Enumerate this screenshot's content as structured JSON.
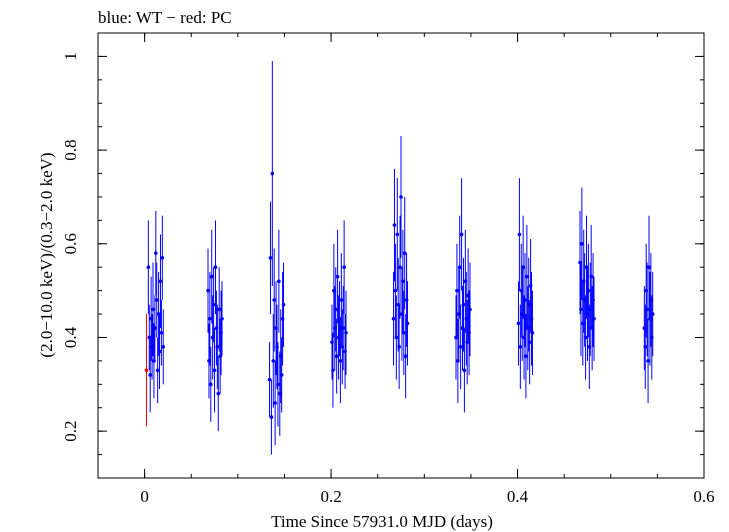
{
  "chart_data": {
    "type": "scatter",
    "title": "blue: WT − red: PC",
    "xlabel": "Time Since 57931.0 MJD (days)",
    "ylabel": "(2.0−10.0 keV)/(0.3−2.0 keV)",
    "xlim": [
      -0.05,
      0.6
    ],
    "ylim": [
      0.1,
      1.05
    ],
    "x_ticks": [
      0,
      0.2,
      0.4,
      0.6
    ],
    "x_tick_labels": [
      "0",
      "0.2",
      "0.4",
      "0.6"
    ],
    "y_ticks": [
      0.2,
      0.4,
      0.6,
      0.8,
      1
    ],
    "y_tick_labels": [
      "0.2",
      "0.4",
      "0.6",
      "0.8",
      "1"
    ],
    "grid": false,
    "series": [
      {
        "name": "WT",
        "color": "#0000ff",
        "x": [
          0.004,
          0.005,
          0.006,
          0.007,
          0.008,
          0.009,
          0.01,
          0.011,
          0.012,
          0.013,
          0.014,
          0.015,
          0.016,
          0.017,
          0.018,
          0.019,
          0.02,
          0.068,
          0.069,
          0.07,
          0.071,
          0.072,
          0.073,
          0.074,
          0.075,
          0.076,
          0.077,
          0.078,
          0.079,
          0.08,
          0.081,
          0.082,
          0.083,
          0.134,
          0.135,
          0.136,
          0.137,
          0.138,
          0.139,
          0.14,
          0.141,
          0.142,
          0.143,
          0.144,
          0.145,
          0.146,
          0.147,
          0.148,
          0.149,
          0.201,
          0.202,
          0.203,
          0.204,
          0.205,
          0.206,
          0.207,
          0.208,
          0.209,
          0.21,
          0.211,
          0.212,
          0.213,
          0.214,
          0.215,
          0.216,
          0.267,
          0.268,
          0.269,
          0.27,
          0.271,
          0.272,
          0.273,
          0.274,
          0.275,
          0.276,
          0.277,
          0.278,
          0.279,
          0.28,
          0.281,
          0.282,
          0.334,
          0.335,
          0.336,
          0.337,
          0.338,
          0.339,
          0.34,
          0.341,
          0.342,
          0.343,
          0.344,
          0.345,
          0.346,
          0.347,
          0.348,
          0.349,
          0.401,
          0.402,
          0.403,
          0.404,
          0.405,
          0.406,
          0.407,
          0.408,
          0.409,
          0.41,
          0.411,
          0.412,
          0.413,
          0.414,
          0.415,
          0.416,
          0.467,
          0.468,
          0.469,
          0.47,
          0.471,
          0.472,
          0.473,
          0.474,
          0.475,
          0.476,
          0.477,
          0.478,
          0.479,
          0.48,
          0.481,
          0.482,
          0.536,
          0.537,
          0.538,
          0.539,
          0.54,
          0.541,
          0.542,
          0.543,
          0.544,
          0.545
        ],
        "y": [
          0.55,
          0.4,
          0.32,
          0.44,
          0.38,
          0.46,
          0.35,
          0.42,
          0.58,
          0.48,
          0.33,
          0.45,
          0.37,
          0.52,
          0.41,
          0.57,
          0.38,
          0.5,
          0.35,
          0.44,
          0.3,
          0.53,
          0.4,
          0.47,
          0.33,
          0.55,
          0.42,
          0.38,
          0.28,
          0.46,
          0.36,
          0.41,
          0.44,
          0.31,
          0.57,
          0.23,
          0.75,
          0.35,
          0.48,
          0.26,
          0.42,
          0.38,
          0.3,
          0.52,
          0.28,
          0.36,
          0.32,
          0.44,
          0.47,
          0.39,
          0.33,
          0.5,
          0.42,
          0.46,
          0.36,
          0.53,
          0.4,
          0.44,
          0.35,
          0.48,
          0.38,
          0.42,
          0.55,
          0.37,
          0.41,
          0.44,
          0.64,
          0.5,
          0.4,
          0.62,
          0.47,
          0.38,
          0.55,
          0.7,
          0.45,
          0.52,
          0.41,
          0.58,
          0.36,
          0.48,
          0.43,
          0.4,
          0.5,
          0.35,
          0.45,
          0.55,
          0.38,
          0.62,
          0.42,
          0.47,
          0.33,
          0.52,
          0.44,
          0.39,
          0.49,
          0.41,
          0.46,
          0.43,
          0.62,
          0.38,
          0.5,
          0.45,
          0.55,
          0.4,
          0.48,
          0.36,
          0.53,
          0.42,
          0.47,
          0.39,
          0.51,
          0.44,
          0.41,
          0.56,
          0.46,
          0.6,
          0.43,
          0.52,
          0.48,
          0.4,
          0.55,
          0.45,
          0.5,
          0.38,
          0.46,
          0.53,
          0.42,
          0.48,
          0.44,
          0.42,
          0.38,
          0.5,
          0.46,
          0.35,
          0.55,
          0.44,
          0.48,
          0.4,
          0.45
        ],
        "err": [
          0.1,
          0.07,
          0.08,
          0.09,
          0.07,
          0.1,
          0.08,
          0.07,
          0.09,
          0.08,
          0.07,
          0.09,
          0.08,
          0.1,
          0.07,
          0.09,
          0.08,
          0.09,
          0.08,
          0.1,
          0.08,
          0.1,
          0.09,
          0.08,
          0.09,
          0.1,
          0.08,
          0.09,
          0.08,
          0.09,
          0.08,
          0.09,
          0.08,
          0.08,
          0.12,
          0.08,
          0.24,
          0.1,
          0.11,
          0.09,
          0.1,
          0.09,
          0.09,
          0.11,
          0.09,
          0.1,
          0.08,
          0.1,
          0.09,
          0.08,
          0.08,
          0.1,
          0.09,
          0.09,
          0.08,
          0.1,
          0.09,
          0.08,
          0.09,
          0.1,
          0.08,
          0.09,
          0.1,
          0.08,
          0.09,
          0.1,
          0.12,
          0.1,
          0.09,
          0.12,
          0.1,
          0.09,
          0.11,
          0.13,
          0.1,
          0.11,
          0.09,
          0.12,
          0.09,
          0.1,
          0.09,
          0.09,
          0.1,
          0.09,
          0.1,
          0.11,
          0.09,
          0.12,
          0.09,
          0.1,
          0.09,
          0.11,
          0.1,
          0.09,
          0.1,
          0.09,
          0.1,
          0.09,
          0.12,
          0.09,
          0.1,
          0.1,
          0.11,
          0.09,
          0.1,
          0.09,
          0.11,
          0.09,
          0.1,
          0.09,
          0.1,
          0.1,
          0.09,
          0.11,
          0.1,
          0.12,
          0.09,
          0.11,
          0.1,
          0.09,
          0.11,
          0.1,
          0.1,
          0.09,
          0.1,
          0.11,
          0.09,
          0.1,
          0.09,
          0.09,
          0.09,
          0.1,
          0.1,
          0.09,
          0.11,
          0.1,
          0.1,
          0.09,
          0.09
        ]
      },
      {
        "name": "PC",
        "color": "#ff0000",
        "x": [
          0.002
        ],
        "y": [
          0.33
        ],
        "err": [
          0.12
        ]
      }
    ]
  }
}
